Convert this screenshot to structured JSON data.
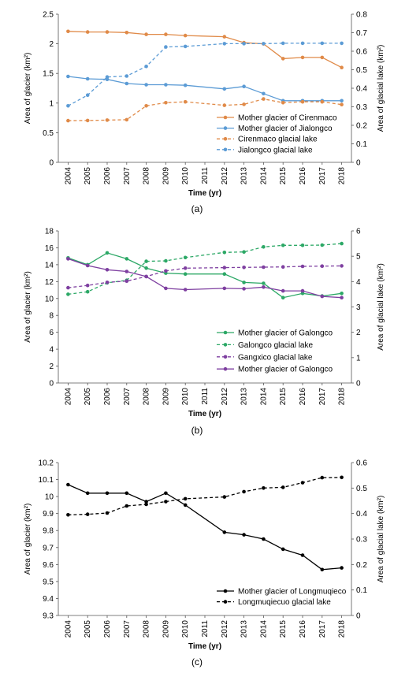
{
  "chart_data": [
    {
      "type": "line",
      "caption": "(a)",
      "x": [
        "2004",
        "2005",
        "2006",
        "2007",
        "2008",
        "2009",
        "2010",
        "2011",
        "2012",
        "2013",
        "2014",
        "2015",
        "2016",
        "2017",
        "2018"
      ],
      "xlabel": "Time (yr)",
      "ylabel": "Area of glacier (km²)",
      "y2label": "Area of glacial lake (km²)",
      "ylim": [
        0,
        2.5
      ],
      "y_ticks": [
        "0",
        "0.5",
        "1",
        "1.5",
        "2",
        "2.5"
      ],
      "y2lim": [
        0,
        0.8
      ],
      "y2_ticks": [
        "0",
        "0.1",
        "0.2",
        "0.3",
        "0.4",
        "0.5",
        "0.6",
        "0.7",
        "0.8"
      ],
      "grid": false,
      "legend_position": "bottom-right",
      "series": [
        {
          "name": "Mother glacier of Cirenmaco",
          "axis": "left",
          "style": "solid",
          "color": "#e08a48",
          "values": [
            2.21,
            2.2,
            2.2,
            2.19,
            2.16,
            2.16,
            2.14,
            null,
            2.12,
            2.02,
            2.0,
            1.75,
            1.77,
            1.77,
            1.6
          ]
        },
        {
          "name": "Mother glacier of Jialongco",
          "axis": "left",
          "style": "solid",
          "color": "#5b9bd5",
          "values": [
            1.45,
            1.41,
            1.4,
            1.33,
            1.31,
            1.31,
            1.3,
            null,
            1.24,
            1.28,
            1.16,
            1.04,
            1.04,
            1.04,
            1.04
          ]
        },
        {
          "name": "Cirenmaco glacial lake",
          "axis": "right",
          "style": "dashed",
          "color": "#e08a48",
          "values": [
            0.225,
            0.226,
            0.228,
            0.23,
            0.305,
            0.322,
            0.327,
            null,
            0.308,
            0.313,
            0.342,
            0.322,
            0.327,
            0.327,
            0.312
          ]
        },
        {
          "name": "Jialongco glacial lake",
          "axis": "right",
          "style": "dashed",
          "color": "#5b9bd5",
          "values": [
            0.305,
            0.363,
            0.461,
            0.466,
            0.518,
            0.623,
            0.626,
            null,
            0.641,
            0.641,
            0.641,
            0.643,
            0.643,
            0.643,
            0.643
          ]
        }
      ]
    },
    {
      "type": "line",
      "caption": "(b)",
      "x": [
        "2004",
        "2005",
        "2006",
        "2007",
        "2008",
        "2009",
        "2010",
        "2011",
        "2012",
        "2013",
        "2014",
        "2015",
        "2016",
        "2017",
        "2018"
      ],
      "xlabel": "Time (yr)",
      "ylabel": "Area of glacier (km²)",
      "y2label": "Area of glacial lake (km²)",
      "ylim": [
        0,
        18
      ],
      "y_ticks": [
        "0",
        "2",
        "4",
        "6",
        "8",
        "10",
        "12",
        "14",
        "16",
        "18"
      ],
      "y2lim": [
        0,
        6
      ],
      "y2_ticks": [
        "0",
        "1",
        "2",
        "3",
        "4",
        "5",
        "6"
      ],
      "grid": false,
      "legend_position": "bottom-right",
      "series": [
        {
          "name": "Mother glacier of Galongco",
          "axis": "left",
          "style": "solid",
          "color": "#2ca866",
          "values": [
            14.8,
            14.0,
            15.4,
            14.7,
            13.6,
            13.0,
            12.9,
            null,
            12.9,
            11.9,
            11.8,
            10.1,
            10.6,
            10.3,
            10.6
          ]
        },
        {
          "name": "Galongco glacial lake",
          "axis": "right",
          "style": "dashed",
          "color": "#2ca866",
          "values": [
            3.5,
            3.6,
            3.95,
            4.05,
            4.8,
            4.82,
            4.95,
            null,
            5.15,
            5.17,
            5.37,
            5.43,
            5.43,
            5.44,
            5.5
          ]
        },
        {
          "name": "Gangxico glacial lake",
          "axis": "right",
          "style": "dashed",
          "color": "#7e3fa0",
          "values": [
            3.76,
            3.85,
            3.97,
            4.02,
            4.2,
            4.42,
            4.53,
            null,
            4.55,
            4.56,
            4.57,
            4.58,
            4.6,
            4.61,
            4.62
          ]
        },
        {
          "name": "Mother glacier of Galongco",
          "axis": "left",
          "style": "solid",
          "color": "#7e3fa0",
          "values": [
            14.7,
            13.9,
            13.4,
            13.2,
            12.6,
            11.2,
            11.05,
            null,
            11.2,
            11.15,
            11.35,
            10.9,
            10.9,
            10.25,
            10.1
          ]
        }
      ]
    },
    {
      "type": "line",
      "caption": "(c)",
      "x": [
        "2004",
        "2005",
        "2006",
        "2007",
        "2008",
        "2009",
        "2010",
        "2011",
        "2012",
        "2013",
        "2014",
        "2015",
        "2016",
        "2017",
        "2018"
      ],
      "xlabel": "Time (yr)",
      "ylabel": "Area of glacier (km²)",
      "y2label": "Area of glacial lake (km²)",
      "ylim": [
        9.3,
        10.2
      ],
      "y_ticks": [
        "9.3",
        "9.4",
        "9.5",
        "9.6",
        "9.7",
        "9.8",
        "9.9",
        "10",
        "10.1",
        "10.2"
      ],
      "y2lim": [
        0,
        0.6
      ],
      "y2_ticks": [
        "0",
        "0.1",
        "0.2",
        "0.3",
        "0.4",
        "0.5",
        "0.6"
      ],
      "grid": false,
      "legend_position": "bottom-right",
      "series": [
        {
          "name": "Mother glacier of Longmuqieco",
          "axis": "left",
          "style": "solid",
          "color": "#000000",
          "values": [
            10.07,
            10.02,
            10.02,
            10.02,
            9.97,
            10.02,
            9.95,
            null,
            9.79,
            9.775,
            9.75,
            9.69,
            9.655,
            9.57,
            9.58
          ]
        },
        {
          "name": "Longmuqiecuo glacial lake",
          "axis": "right",
          "style": "dashed",
          "color": "#000000",
          "values": [
            0.395,
            0.397,
            0.402,
            0.43,
            0.436,
            0.447,
            0.458,
            null,
            0.465,
            0.486,
            0.5,
            0.503,
            0.521,
            0.541,
            0.542
          ]
        }
      ]
    }
  ]
}
